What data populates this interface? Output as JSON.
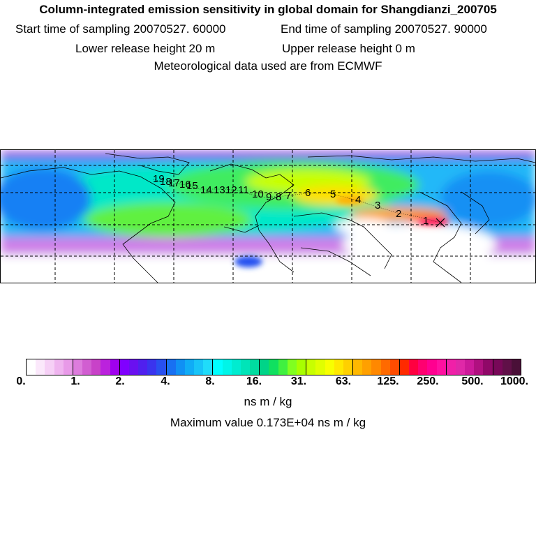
{
  "header": {
    "title": "Column-integrated emission sensitivity in global domain for Shangdianzi_200705",
    "start_label": "Start time of sampling 20070527. 60000",
    "end_label": "End time of sampling 20070527. 90000",
    "lower_label": "Lower release height   20 m",
    "upper_label": "Upper release height    0 m",
    "met_label": "Meteorological data used are from ECMWF"
  },
  "map": {
    "trajectory_labels": [
      "1",
      "2",
      "3",
      "4",
      "5",
      "6",
      "7",
      "8",
      "9",
      "10",
      "11",
      "12",
      "13",
      "14",
      "15",
      "16",
      "17",
      "18",
      "19"
    ]
  },
  "colorbar": {
    "tick_labels": [
      "0.",
      "1.",
      "2.",
      "4.",
      "8.",
      "16.",
      "31.",
      "63.",
      "125.",
      "250.",
      "500.",
      "1000."
    ],
    "colors": [
      "#ffffff",
      "#fbe8fb",
      "#f6d0f6",
      "#efb4ef",
      "#e89ae8",
      "#dd7cdd",
      "#d15ed1",
      "#c842c8",
      "#bb22dd",
      "#a000ee",
      "#8000ff",
      "#6a10f0",
      "#5020ee",
      "#3a34ee",
      "#2850f0",
      "#1870f2",
      "#1090f4",
      "#10acf6",
      "#18c4f8",
      "#20dcfa",
      "#00ffff",
      "#00f5e8",
      "#00ecd0",
      "#00e4b8",
      "#00dca0",
      "#00d488",
      "#10e060",
      "#40f040",
      "#80ff20",
      "#a8ff00",
      "#c8ff00",
      "#e0ff00",
      "#f8ff00",
      "#ffe800",
      "#ffd000",
      "#ffb800",
      "#ffa000",
      "#ff8800",
      "#ff6a00",
      "#ff4c00",
      "#ff2a00",
      "#ff0040",
      "#ff0070",
      "#ff0090",
      "#ff10a0",
      "#f020a8",
      "#e028a8",
      "#cc1a9a",
      "#b01080",
      "#900868",
      "#780858",
      "#601048",
      "#4a1038"
    ],
    "unit": "ns m / kg",
    "max_value": "Maximum value  0.173E+04 ns m / kg"
  }
}
